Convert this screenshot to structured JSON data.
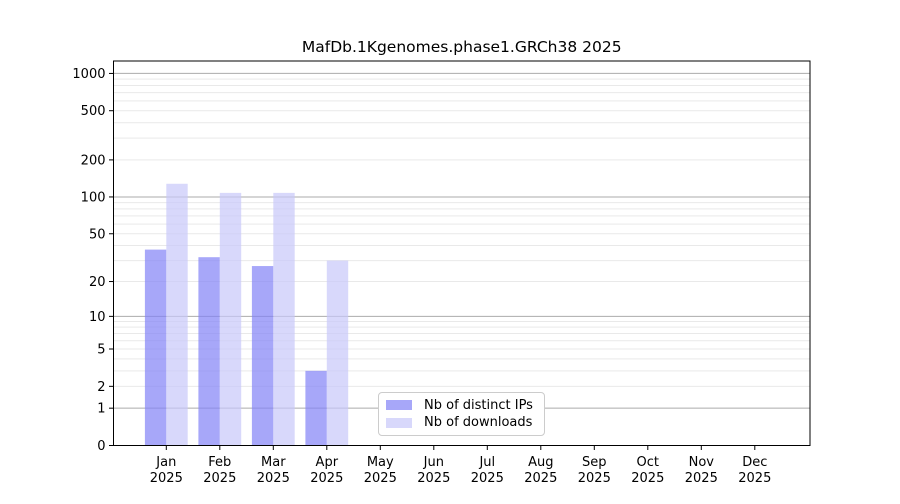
{
  "chart_data": {
    "type": "bar",
    "title": "MafDb.1Kgenomes.phase1.GRCh38 2025",
    "categories": [
      "Jan",
      "Feb",
      "Mar",
      "Apr",
      "May",
      "Jun",
      "Jul",
      "Aug",
      "Sep",
      "Oct",
      "Nov",
      "Dec"
    ],
    "category_year": "2025",
    "series": [
      {
        "name": "Nb of distinct IPs",
        "color": "rgba(130,130,247,0.7)",
        "values": [
          37,
          32,
          27,
          3,
          null,
          null,
          null,
          null,
          null,
          null,
          null,
          null
        ]
      },
      {
        "name": "Nb of downloads",
        "color": "rgba(199,199,249,0.7)",
        "values": [
          128,
          108,
          108,
          30,
          null,
          null,
          null,
          null,
          null,
          null,
          null,
          null
        ]
      }
    ],
    "yscale": "log1p",
    "yticks": [
      0,
      1,
      2,
      5,
      10,
      20,
      50,
      100,
      200,
      500,
      1000
    ],
    "ylim": [
      0,
      1260
    ],
    "xlabel": "",
    "ylabel": "",
    "grid": {
      "orientation": "horizontal",
      "major_values": [
        1,
        10,
        100,
        1000
      ],
      "minor_values": [
        2,
        3,
        4,
        5,
        6,
        7,
        8,
        9,
        20,
        30,
        40,
        50,
        60,
        70,
        80,
        90,
        200,
        300,
        400,
        500,
        600,
        700,
        800,
        900
      ],
      "major_color": "#ababab",
      "minor_color": "#e9e9e9"
    },
    "legend": {
      "position": "lower center",
      "border_color": "#cccccc"
    },
    "colors": {
      "axis": "#000000",
      "background": "#ffffff"
    }
  }
}
